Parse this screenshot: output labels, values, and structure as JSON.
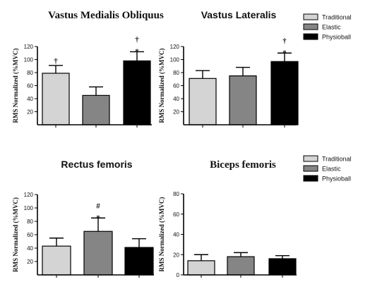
{
  "legends": [
    [
      "Traditional",
      "Elastic",
      "Physioball"
    ],
    [
      "Traditional",
      "Elastic",
      "Physioball"
    ]
  ],
  "colors": {
    "Traditional": "#d4d4d4",
    "Elastic": "#858585",
    "Physioball": "#000000"
  },
  "chart_data": [
    {
      "type": "bar",
      "title": "Vastus Medialis Obliquus",
      "ylabel": "RMS Normalized (%MVC)",
      "ylim": [
        0,
        120
      ],
      "yticks": [
        "20",
        "40",
        "60",
        "80",
        "100",
        "120"
      ],
      "categories": [
        "Traditional",
        "Elastic",
        "Physioball"
      ],
      "values": [
        79,
        45,
        98
      ],
      "errors": [
        12,
        13,
        14
      ],
      "annotations": [
        [
          "†"
        ],
        [],
        [
          "†",
          "*"
        ]
      ]
    },
    {
      "type": "bar",
      "title": "Vastus Lateralis",
      "ylabel": "RMS Normalized (%MVC)",
      "ylim": [
        0,
        120
      ],
      "yticks": [
        "20",
        "40",
        "60",
        "80",
        "100",
        "120"
      ],
      "categories": [
        "Traditional",
        "Elastic",
        "Physioball"
      ],
      "values": [
        71,
        75,
        97
      ],
      "errors": [
        12,
        13,
        13
      ],
      "annotations": [
        [],
        [],
        [
          "†",
          "*"
        ]
      ]
    },
    {
      "type": "bar",
      "title": "Rectus femoris",
      "ylabel": "RMS Normalized (%MVC)",
      "ylim": [
        0,
        120
      ],
      "yticks": [
        "20",
        "40",
        "60",
        "80",
        "100",
        "120"
      ],
      "categories": [
        "Traditional",
        "Elastic",
        "Physioball"
      ],
      "values": [
        43,
        65,
        41
      ],
      "errors": [
        12,
        20,
        13
      ],
      "annotations": [
        [],
        [
          "#",
          "*"
        ],
        []
      ]
    },
    {
      "type": "bar",
      "title": "Biceps femoris",
      "ylabel": "RMS Normalized (%MVC)",
      "ylim": [
        0,
        80
      ],
      "yticks": [
        "0",
        "20",
        "40",
        "60",
        "80"
      ],
      "categories": [
        "Traditional",
        "Elastic",
        "Physioball"
      ],
      "values": [
        14,
        18,
        16
      ],
      "errors": [
        6,
        4,
        3
      ],
      "annotations": [
        [],
        [],
        []
      ]
    }
  ]
}
